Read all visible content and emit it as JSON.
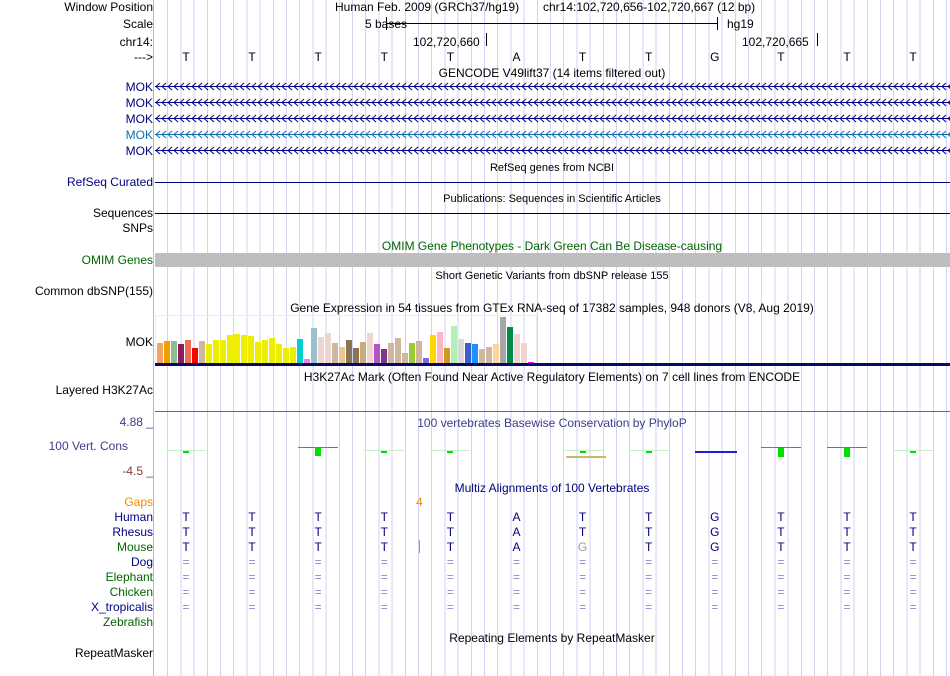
{
  "header": {
    "window_position_label": "Window Position",
    "assembly": "Human Feb. 2009 (GRCh37/hg19)",
    "position": "chr14:102,720,656-102,720,667 (12 bp)",
    "scale_label": "Scale",
    "scale_text": "5 bases",
    "scale_db": "hg19",
    "chrom_label": "chr14:",
    "coord1": "102,720,660",
    "coord2": "102,720,665",
    "strand_label": "--->"
  },
  "sequence": [
    "T",
    "T",
    "T",
    "T",
    "T",
    "A",
    "T",
    "T",
    "G",
    "T",
    "T",
    "T"
  ],
  "gencode": {
    "title": "GENCODE V49lift37 (14 items filtered out)",
    "items": [
      {
        "label": "MOK",
        "color": "#000080"
      },
      {
        "label": "MOK",
        "color": "#000080"
      },
      {
        "label": "MOK",
        "color": "#000080"
      },
      {
        "label": "MOK",
        "color": "#0c6eb0"
      },
      {
        "label": "MOK",
        "color": "#000080"
      }
    ]
  },
  "refseq": {
    "title": "RefSeq genes from NCBI",
    "label": "RefSeq Curated"
  },
  "publications": {
    "title": "Publications: Sequences in Scientific Articles",
    "label1": "Sequences",
    "label2": "SNPs"
  },
  "omim": {
    "title": "OMIM Gene Phenotypes - Dark Green Can Be Disease-causing",
    "label": "OMIM Genes"
  },
  "dbsnp": {
    "title": "Short Genetic Variants from dbSNP release 155",
    "label": "Common dbSNP(155)"
  },
  "gtex": {
    "title": "Gene Expression in 54 tissues from GTEx RNA-seq of 17382 samples, 948 donors (V8, Aug 2019)",
    "label": "MOK",
    "colors": [
      "#f4a460",
      "#f0a000",
      "#8fbc8f",
      "#8b1c62",
      "#ee6a50",
      "#ff0000",
      "#cdb79e",
      "#eeee00",
      "#eeee00",
      "#eeee00",
      "#eeee00",
      "#eeee00",
      "#eeee00",
      "#eeee00",
      "#eeee00",
      "#eeee00",
      "#eeee00",
      "#eeee00",
      "#eeee00",
      "#eeee00",
      "#00cdcd",
      "#ee82ee",
      "#9ac0cd",
      "#eed5d2",
      "#eed5d2",
      "#cdb79e",
      "#eec591",
      "#8b7355",
      "#8b7355",
      "#cdaa7d",
      "#eed5d2",
      "#b452cd",
      "#7a378b",
      "#cdb79e",
      "#cdb79e",
      "#cdb79e",
      "#9acd32",
      "#cdb79e",
      "#7b68ee",
      "#ffd700",
      "#ffb6c1",
      "#cd9b1d",
      "#b4eeb4",
      "#d9d9d9",
      "#3a5fcd",
      "#1e90ff",
      "#cdb79e",
      "#cdb79e",
      "#ffd39b",
      "#a6a6a6",
      "#008b45",
      "#eed5d2",
      "#eed5d2",
      "#ff00ff"
    ],
    "relative_expression": [
      21,
      23,
      23,
      20,
      24,
      16,
      23,
      20,
      24,
      24,
      29,
      30,
      29,
      28,
      22,
      24,
      26,
      20,
      16,
      17,
      25,
      5,
      36,
      27,
      31,
      21,
      17,
      24,
      16,
      22,
      31,
      20,
      15,
      21,
      26,
      11,
      21,
      23,
      6,
      29,
      32,
      16,
      38,
      25,
      21,
      20,
      15,
      17,
      20,
      47,
      37,
      30,
      21,
      2
    ]
  },
  "h3k27ac": {
    "title": "H3K27Ac Mark (Often Found Near Active Regulatory Elements) on 7 cell lines from ENCODE",
    "label": "Layered H3K27Ac"
  },
  "phylop": {
    "title": "100 vertebrates Basewise Conservation by PhyloP",
    "label": "100 Vert. Cons",
    "max": "4.88 _",
    "min": "-4.5 _",
    "scores": [
      0.4,
      0,
      1.8,
      0.15,
      0.15,
      0,
      0.35,
      0.5,
      -0.2,
      2.0,
      2.0,
      0.5
    ]
  },
  "multiz": {
    "title": "Multiz Alignments of 100 Vertebrates",
    "gaps_label": "Gaps",
    "gap_count": "4",
    "species": [
      {
        "name": "Human",
        "color": "#000080",
        "bases": [
          "T",
          "T",
          "T",
          "T",
          "T",
          "A",
          "T",
          "T",
          "G",
          "T",
          "T",
          "T"
        ]
      },
      {
        "name": "Rhesus",
        "color": "#000080",
        "bases": [
          "T",
          "T",
          "T",
          "T",
          "T",
          "A",
          "T",
          "T",
          "G",
          "T",
          "T",
          "T"
        ]
      },
      {
        "name": "Mouse",
        "color": "#006400",
        "bases": [
          "T",
          "T",
          "T",
          "T",
          "T",
          "A",
          "G",
          "T",
          "G",
          "T",
          "T",
          "T"
        ]
      },
      {
        "name": "Dog",
        "color": "#000080",
        "bases": [
          "=",
          "=",
          "=",
          "=",
          "=",
          "=",
          "=",
          "=",
          "=",
          "=",
          "=",
          "="
        ]
      },
      {
        "name": "Elephant",
        "color": "#006400",
        "bases": [
          "=",
          "=",
          "=",
          "=",
          "=",
          "=",
          "=",
          "=",
          "=",
          "=",
          "=",
          "="
        ]
      },
      {
        "name": "Chicken",
        "color": "#006400",
        "bases": [
          "=",
          "=",
          "=",
          "=",
          "=",
          "=",
          "=",
          "=",
          "=",
          "=",
          "=",
          "="
        ]
      },
      {
        "name": "X_tropicalis",
        "color": "#000080",
        "bases": [
          "=",
          "=",
          "=",
          "=",
          "=",
          "=",
          "=",
          "=",
          "=",
          "=",
          "=",
          "="
        ]
      },
      {
        "name": "Zebrafish",
        "color": "#006400",
        "bases": []
      }
    ]
  },
  "repeatmasker": {
    "title": "Repeating Elements by RepeatMasker",
    "label": "RepeatMasker"
  }
}
